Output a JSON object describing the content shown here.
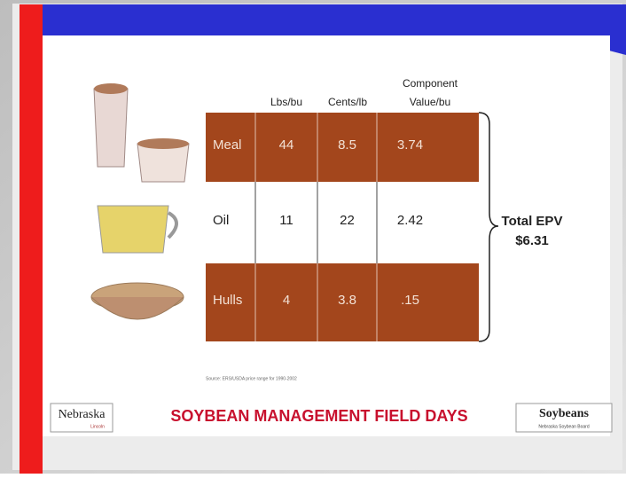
{
  "table": {
    "headers": [
      "Lbs/bu",
      "Cents/lb",
      "Component Value/bu"
    ],
    "rows": [
      [
        "Meal",
        "44",
        "8.5",
        "3.74"
      ],
      [
        "Oil",
        "11",
        "22",
        "2.42"
      ],
      [
        "Hulls",
        "4",
        "3.8",
        ".15"
      ]
    ]
  },
  "total": {
    "label": "Total EPV",
    "value": "$6.31"
  },
  "source": "Source: ERS/USDA price range for 1990-2002",
  "footer": {
    "title": "SOYBEAN MANAGEMENT FIELD DAYS",
    "left_logo": "Nebraska",
    "left_logo_sub": "Lincoln",
    "right_logo": "Soybeans",
    "right_logo_sub": "Nebraska Soybean Board"
  }
}
